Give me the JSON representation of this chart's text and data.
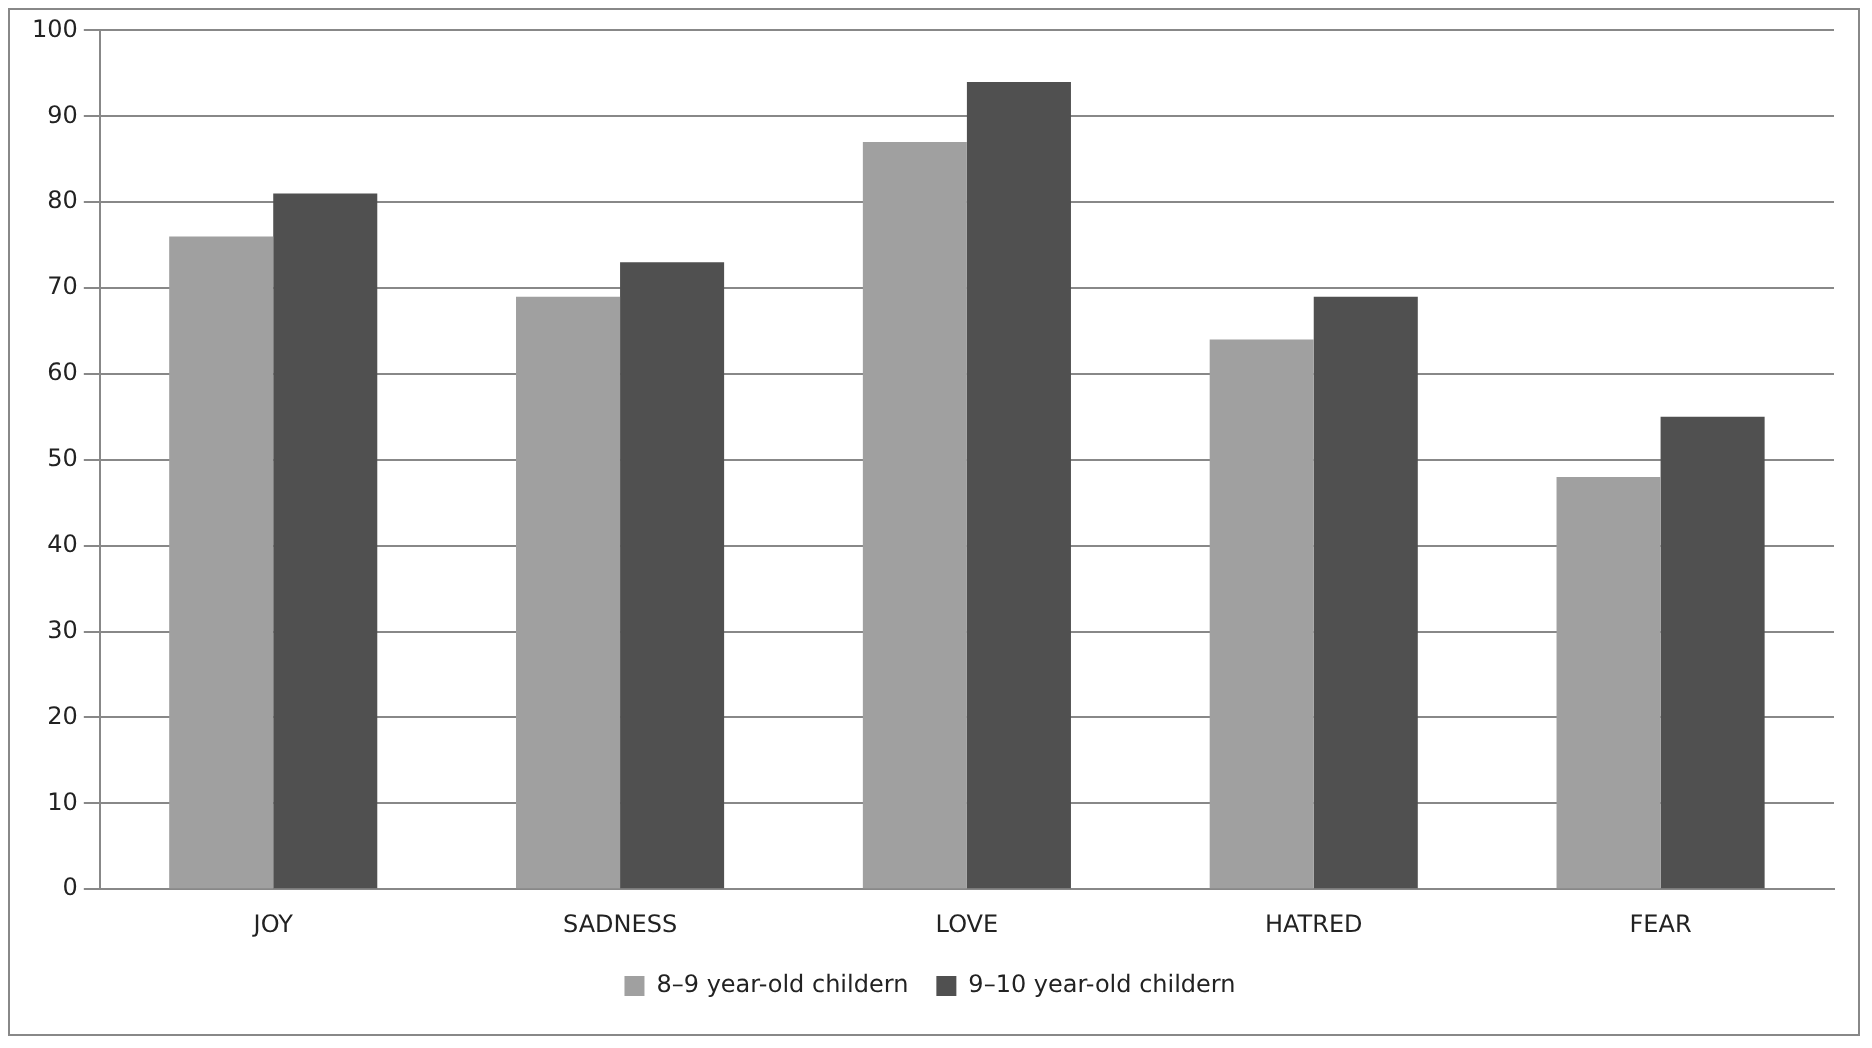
{
  "chart_data": {
    "type": "bar",
    "categories": [
      "JOY",
      "SADNESS",
      "LOVE",
      "HATRED",
      "FEAR"
    ],
    "series": [
      {
        "name": "8–9 year-old childern",
        "color": "#a0a0a0",
        "values": [
          76,
          69,
          87,
          64,
          48
        ]
      },
      {
        "name": "9–10 year-old childern",
        "color": "#505050",
        "values": [
          81,
          73,
          94,
          69,
          55
        ]
      }
    ],
    "ylim": [
      0,
      100
    ],
    "yticks": [
      0,
      10,
      20,
      30,
      40,
      50,
      60,
      70,
      80,
      90,
      100
    ],
    "grid": "y",
    "legend": "bottom"
  }
}
